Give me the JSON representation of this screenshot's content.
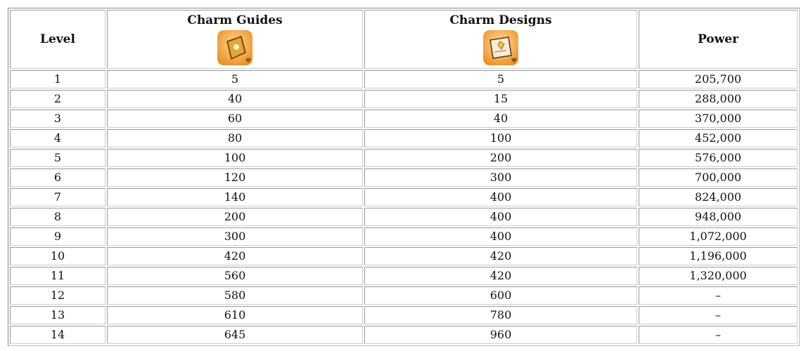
{
  "headers": [
    "Level",
    "Charm Guides",
    "Charm Designs",
    "Power"
  ],
  "icons": {
    "guides": "charm-guide-book-icon",
    "designs": "charm-design-scroll-icon"
  },
  "colors": {
    "icon_orange": "#f0a030"
  },
  "rows": [
    [
      "1",
      "5",
      "5",
      "205,700"
    ],
    [
      "2",
      "40",
      "15",
      "288,000"
    ],
    [
      "3",
      "60",
      "40",
      "370,000"
    ],
    [
      "4",
      "80",
      "100",
      "452,000"
    ],
    [
      "5",
      "100",
      "200",
      "576,000"
    ],
    [
      "6",
      "120",
      "300",
      "700,000"
    ],
    [
      "7",
      "140",
      "400",
      "824,000"
    ],
    [
      "8",
      "200",
      "400",
      "948,000"
    ],
    [
      "9",
      "300",
      "400",
      "1,072,000"
    ],
    [
      "10",
      "420",
      "420",
      "1,196,000"
    ],
    [
      "11",
      "560",
      "420",
      "1,320,000"
    ],
    [
      "12",
      "580",
      "600",
      "–"
    ],
    [
      "13",
      "610",
      "780",
      "–"
    ],
    [
      "14",
      "645",
      "960",
      "–"
    ]
  ]
}
